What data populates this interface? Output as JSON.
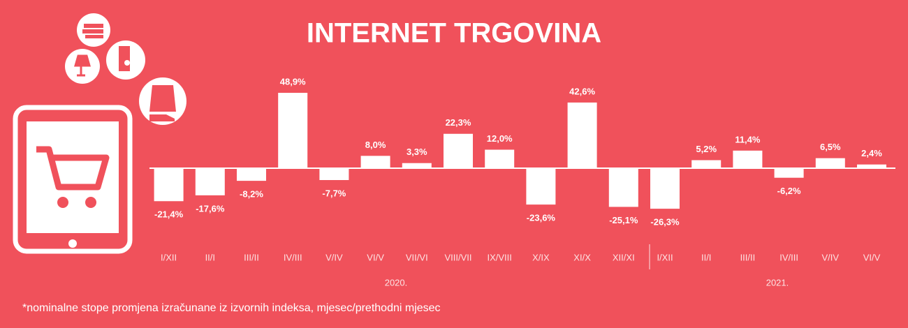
{
  "chart_data": {
    "type": "bar",
    "title": "INTERNET  TRGOVINA",
    "categories": [
      "I/XII",
      "II/I",
      "III/II",
      "IV/III",
      "V/IV",
      "VI/V",
      "VII/VI",
      "VIII/VII",
      "IX/VIII",
      "X/IX",
      "XI/X",
      "XII/XI",
      "I/XII",
      "II/I",
      "III/II",
      "IV/III",
      "V/IV",
      "VI/V"
    ],
    "values": [
      -21.4,
      -17.6,
      -8.2,
      48.9,
      -7.7,
      8.0,
      3.3,
      22.3,
      12.0,
      -23.6,
      42.6,
      -25.1,
      -26.3,
      5.2,
      11.4,
      -6.2,
      6.5,
      2.4
    ],
    "value_labels": [
      "-21,4%",
      "-17,6%",
      "-8,2%",
      "48,9%",
      "-7,7%",
      "8,0%",
      "3,3%",
      "22,3%",
      "12,0%",
      "-23,6%",
      "42,6%",
      "-25,1%",
      "-26,3%",
      "5,2%",
      "11,4%",
      "-6,2%",
      "6,5%",
      "2,4%"
    ],
    "years": [
      "2020.",
      "2021."
    ],
    "color": "#ffffff",
    "footnote": "*nominalne stope promjena izračunane iz izvornih indeksa, mjesec/prethodni mjesec"
  }
}
